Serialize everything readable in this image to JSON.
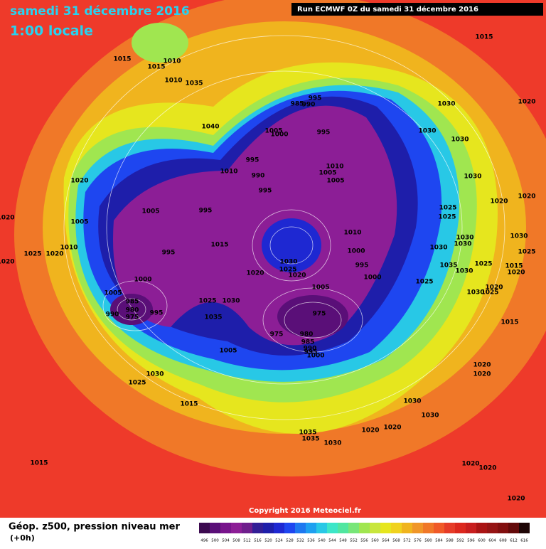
{
  "header": {
    "date": "samedi 31 décembre 2016",
    "time": "1:00 locale",
    "run": "Run ECMWF 0Z du samedi 31 décembre 2016"
  },
  "copyright": "Copyright 2016 Meteociel.fr",
  "legend": {
    "title": "Géop. z500, pression niveau mer",
    "subtitle": "(+0h)",
    "values": [
      496,
      500,
      504,
      508,
      512,
      516,
      520,
      524,
      528,
      532,
      536,
      540,
      544,
      548,
      552,
      556,
      560,
      564,
      568,
      572,
      576,
      580,
      584,
      588,
      592,
      596,
      600,
      604,
      608,
      612,
      616
    ],
    "colors": [
      "#3c0a50",
      "#5a0f78",
      "#78148c",
      "#8c1e96",
      "#6e1e8c",
      "#321e96",
      "#1e1eaa",
      "#1e28d2",
      "#1e46f0",
      "#1e78f0",
      "#1ea0f0",
      "#28c8e6",
      "#3ce6c8",
      "#50e6a0",
      "#78e678",
      "#a0e650",
      "#c8e63c",
      "#e6e61e",
      "#f0d21e",
      "#f0b41e",
      "#f09628",
      "#f07828",
      "#f05a28",
      "#e63c28",
      "#dc281e",
      "#c81e1e",
      "#aa1414",
      "#961414",
      "#820f0f",
      "#640a0a",
      "#1e0505"
    ]
  },
  "isobar_labels": [
    1015,
    1015,
    1010,
    1010,
    1035,
    1040,
    1015,
    1020,
    1030,
    1030,
    1030,
    1030,
    1020,
    1020,
    1025,
    1025,
    1030,
    1030,
    1030,
    1030,
    995,
    985,
    990,
    995,
    1005,
    1000,
    995,
    990,
    995,
    1010,
    1005,
    1010,
    1005,
    1020,
    1005,
    995,
    1005,
    1015,
    995,
    1010,
    1025,
    1020,
    1020,
    1000,
    1030,
    1025,
    1020,
    1020,
    1010,
    1000,
    995,
    1000,
    1035,
    1030,
    1025,
    1015,
    1020,
    1025,
    1025,
    1005,
    985,
    980,
    975,
    990,
    995,
    1025,
    1030,
    1035,
    1005,
    975,
    975,
    980,
    985,
    990,
    995,
    1000,
    1005,
    1030,
    1025,
    1015,
    1015,
    1030,
    1030,
    1020,
    1020,
    1035,
    1035,
    1030,
    1020,
    1020,
    1020,
    1020,
    1015,
    1020,
    1030,
    1025,
    1020,
    1020
  ]
}
